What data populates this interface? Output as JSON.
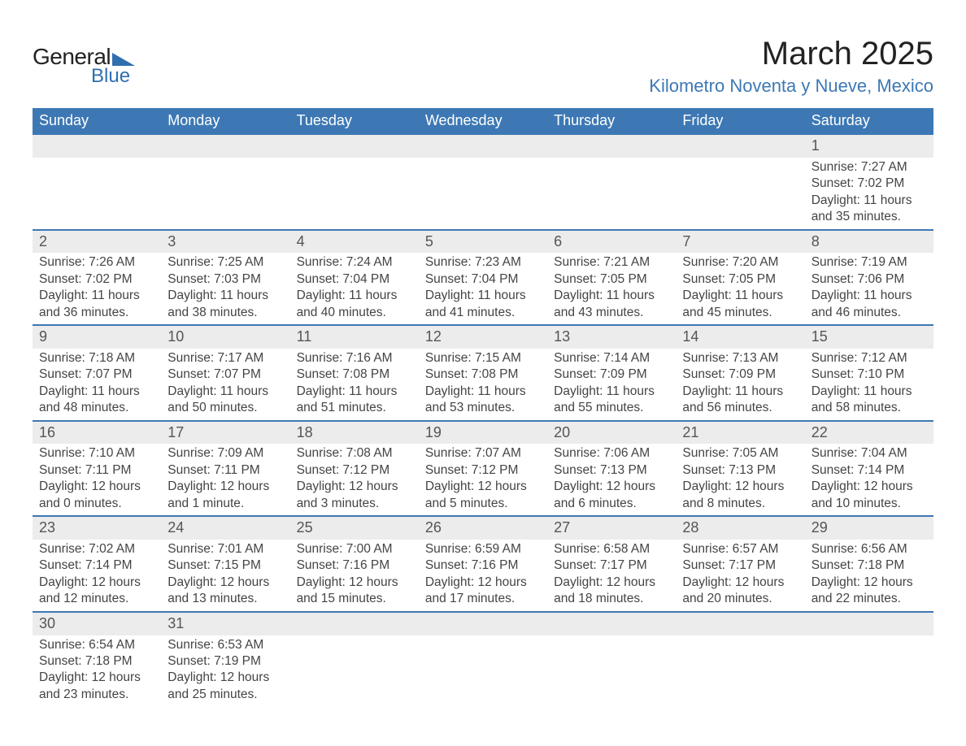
{
  "logo": {
    "general": "General",
    "blue": "Blue"
  },
  "title": "March 2025",
  "location": "Kilometro Noventa y Nueve, Mexico",
  "colors": {
    "header_bg": "#3d78b4",
    "header_text": "#ffffff",
    "row_divider": "#3d78b4",
    "daynum_bg": "#ececec",
    "location_text": "#3d78b4",
    "logo_blue": "#2f6fb0"
  },
  "daynames": [
    "Sunday",
    "Monday",
    "Tuesday",
    "Wednesday",
    "Thursday",
    "Friday",
    "Saturday"
  ],
  "weeks": [
    [
      null,
      null,
      null,
      null,
      null,
      null,
      {
        "n": "1",
        "sr": "7:27 AM",
        "ss": "7:02 PM",
        "dl": "11 hours and 35 minutes."
      }
    ],
    [
      {
        "n": "2",
        "sr": "7:26 AM",
        "ss": "7:02 PM",
        "dl": "11 hours and 36 minutes."
      },
      {
        "n": "3",
        "sr": "7:25 AM",
        "ss": "7:03 PM",
        "dl": "11 hours and 38 minutes."
      },
      {
        "n": "4",
        "sr": "7:24 AM",
        "ss": "7:04 PM",
        "dl": "11 hours and 40 minutes."
      },
      {
        "n": "5",
        "sr": "7:23 AM",
        "ss": "7:04 PM",
        "dl": "11 hours and 41 minutes."
      },
      {
        "n": "6",
        "sr": "7:21 AM",
        "ss": "7:05 PM",
        "dl": "11 hours and 43 minutes."
      },
      {
        "n": "7",
        "sr": "7:20 AM",
        "ss": "7:05 PM",
        "dl": "11 hours and 45 minutes."
      },
      {
        "n": "8",
        "sr": "7:19 AM",
        "ss": "7:06 PM",
        "dl": "11 hours and 46 minutes."
      }
    ],
    [
      {
        "n": "9",
        "sr": "7:18 AM",
        "ss": "7:07 PM",
        "dl": "11 hours and 48 minutes."
      },
      {
        "n": "10",
        "sr": "7:17 AM",
        "ss": "7:07 PM",
        "dl": "11 hours and 50 minutes."
      },
      {
        "n": "11",
        "sr": "7:16 AM",
        "ss": "7:08 PM",
        "dl": "11 hours and 51 minutes."
      },
      {
        "n": "12",
        "sr": "7:15 AM",
        "ss": "7:08 PM",
        "dl": "11 hours and 53 minutes."
      },
      {
        "n": "13",
        "sr": "7:14 AM",
        "ss": "7:09 PM",
        "dl": "11 hours and 55 minutes."
      },
      {
        "n": "14",
        "sr": "7:13 AM",
        "ss": "7:09 PM",
        "dl": "11 hours and 56 minutes."
      },
      {
        "n": "15",
        "sr": "7:12 AM",
        "ss": "7:10 PM",
        "dl": "11 hours and 58 minutes."
      }
    ],
    [
      {
        "n": "16",
        "sr": "7:10 AM",
        "ss": "7:11 PM",
        "dl": "12 hours and 0 minutes."
      },
      {
        "n": "17",
        "sr": "7:09 AM",
        "ss": "7:11 PM",
        "dl": "12 hours and 1 minute."
      },
      {
        "n": "18",
        "sr": "7:08 AM",
        "ss": "7:12 PM",
        "dl": "12 hours and 3 minutes."
      },
      {
        "n": "19",
        "sr": "7:07 AM",
        "ss": "7:12 PM",
        "dl": "12 hours and 5 minutes."
      },
      {
        "n": "20",
        "sr": "7:06 AM",
        "ss": "7:13 PM",
        "dl": "12 hours and 6 minutes."
      },
      {
        "n": "21",
        "sr": "7:05 AM",
        "ss": "7:13 PM",
        "dl": "12 hours and 8 minutes."
      },
      {
        "n": "22",
        "sr": "7:04 AM",
        "ss": "7:14 PM",
        "dl": "12 hours and 10 minutes."
      }
    ],
    [
      {
        "n": "23",
        "sr": "7:02 AM",
        "ss": "7:14 PM",
        "dl": "12 hours and 12 minutes."
      },
      {
        "n": "24",
        "sr": "7:01 AM",
        "ss": "7:15 PM",
        "dl": "12 hours and 13 minutes."
      },
      {
        "n": "25",
        "sr": "7:00 AM",
        "ss": "7:16 PM",
        "dl": "12 hours and 15 minutes."
      },
      {
        "n": "26",
        "sr": "6:59 AM",
        "ss": "7:16 PM",
        "dl": "12 hours and 17 minutes."
      },
      {
        "n": "27",
        "sr": "6:58 AM",
        "ss": "7:17 PM",
        "dl": "12 hours and 18 minutes."
      },
      {
        "n": "28",
        "sr": "6:57 AM",
        "ss": "7:17 PM",
        "dl": "12 hours and 20 minutes."
      },
      {
        "n": "29",
        "sr": "6:56 AM",
        "ss": "7:18 PM",
        "dl": "12 hours and 22 minutes."
      }
    ],
    [
      {
        "n": "30",
        "sr": "6:54 AM",
        "ss": "7:18 PM",
        "dl": "12 hours and 23 minutes."
      },
      {
        "n": "31",
        "sr": "6:53 AM",
        "ss": "7:19 PM",
        "dl": "12 hours and 25 minutes."
      },
      null,
      null,
      null,
      null,
      null
    ]
  ],
  "labels": {
    "sunrise": "Sunrise: ",
    "sunset": "Sunset: ",
    "daylight": "Daylight: "
  }
}
